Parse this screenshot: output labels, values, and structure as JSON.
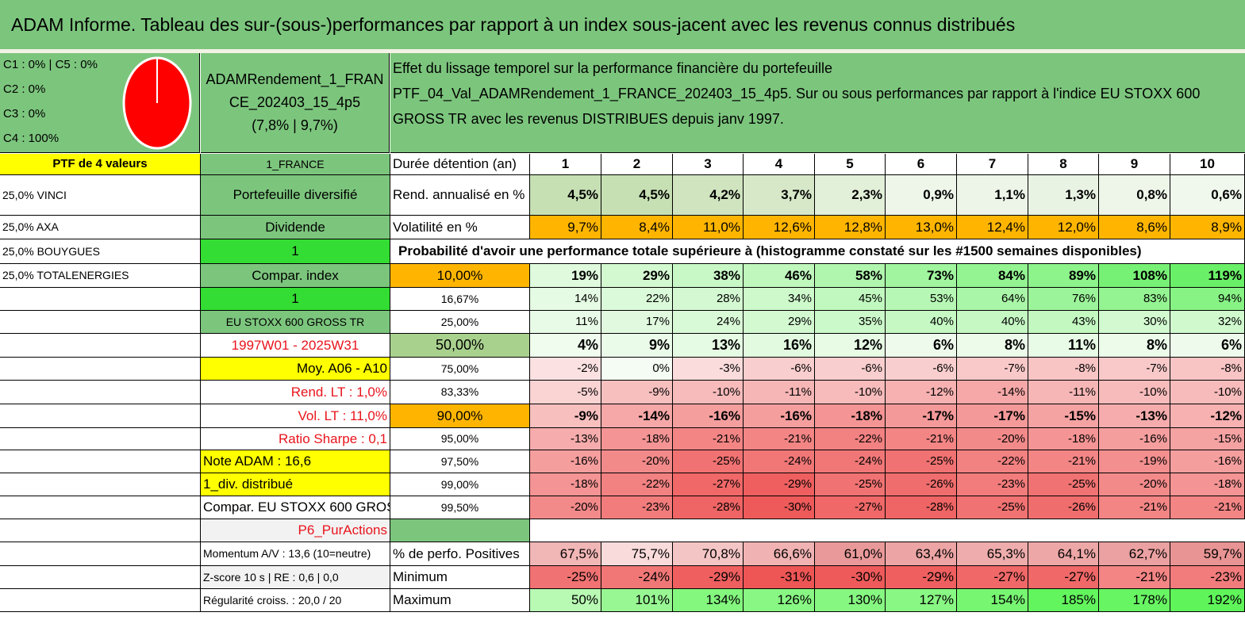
{
  "title": "ADAM Informe. Tableau des sur-(sous-)performances par rapport à un index sous-jacent avec les revenus connus distribués",
  "classes": [
    "C1 : 0% | C5 : 0%",
    "C2 : 0%",
    "C3 : 0%",
    "C4 : 100%"
  ],
  "pie": {
    "color": "#ff0000",
    "label_c4": 100
  },
  "portfolio_name": [
    "ADAMRendement_1_FRAN",
    "CE_202403_15_4p5",
    "(7,8% | 9,7%)"
  ],
  "effect_text": [
    "Effet du lissage temporel sur la performance financière du portefeuille",
    "PTF_04_Val_ADAMRendement_1_FRANCE_202403_15_4p5. Sur ou sous performances par rapport à l'indice EU STOXX 600",
    "GROSS TR avec les revenus DISTRIBUES depuis janv 1997."
  ],
  "left_col": [
    "PTF de 4 valeurs",
    "25,0% VINCI",
    "25,0% AXA",
    "25,0% BOUYGUES",
    "25,0% TOTALENERGIES"
  ],
  "mid_col": [
    "1_FRANCE",
    "Portefeuille diversifié",
    "Dividende",
    "1",
    "Compar. index",
    "1",
    "EU STOXX 600 GROSS TR",
    "1997W01 - 2025W31",
    "Moy. A06 - A10",
    "Rend. LT : 1,0%",
    "Vol. LT : 11,0%",
    "Ratio Sharpe : 0,1",
    "Note ADAM : 16,6",
    "1_div. distribué",
    "Compar. EU STOXX 600 GROSS TR",
    "P6_PurActions",
    "Momentum A/V : 13,6 (10=neutre)",
    "Z-score 10 s | RE : 0,6 | 0,0",
    "Régularité croiss. : 20,0 / 20"
  ],
  "holding_label": "Durée détention (an)",
  "years": [
    "1",
    "2",
    "3",
    "4",
    "5",
    "6",
    "7",
    "8",
    "9",
    "10"
  ],
  "rend_label": "Rend. annualisé en %",
  "rend": [
    "4,5%",
    "4,5%",
    "4,2%",
    "3,7%",
    "2,3%",
    "0,9%",
    "1,1%",
    "1,3%",
    "0,8%",
    "0,6%"
  ],
  "vol_label": "Volatilité en %",
  "vol": [
    "9,7%",
    "8,4%",
    "11,0%",
    "12,6%",
    "12,8%",
    "13,0%",
    "12,4%",
    "12,0%",
    "8,6%",
    "8,9%"
  ],
  "prob_title": "Probabilité d'avoir une performance totale supérieure à (histogramme constaté sur les #1500 semaines disponibles)",
  "prob_rows": [
    {
      "p": "10,00%",
      "v": [
        "19%",
        "29%",
        "38%",
        "46%",
        "58%",
        "73%",
        "84%",
        "89%",
        "108%",
        "119%"
      ]
    },
    {
      "p": "16,67%",
      "v": [
        "14%",
        "22%",
        "28%",
        "34%",
        "45%",
        "53%",
        "64%",
        "76%",
        "83%",
        "94%"
      ]
    },
    {
      "p": "25,00%",
      "v": [
        "11%",
        "17%",
        "24%",
        "29%",
        "35%",
        "40%",
        "40%",
        "43%",
        "30%",
        "32%"
      ]
    },
    {
      "p": "50,00%",
      "v": [
        "4%",
        "9%",
        "13%",
        "16%",
        "12%",
        "6%",
        "8%",
        "11%",
        "8%",
        "6%"
      ]
    },
    {
      "p": "75,00%",
      "v": [
        "-2%",
        "0%",
        "-3%",
        "-6%",
        "-6%",
        "-6%",
        "-7%",
        "-8%",
        "-7%",
        "-8%"
      ]
    },
    {
      "p": "83,33%",
      "v": [
        "-5%",
        "-9%",
        "-10%",
        "-11%",
        "-10%",
        "-12%",
        "-14%",
        "-11%",
        "-10%",
        "-10%"
      ]
    },
    {
      "p": "90,00%",
      "v": [
        "-9%",
        "-14%",
        "-16%",
        "-16%",
        "-18%",
        "-17%",
        "-17%",
        "-15%",
        "-13%",
        "-12%"
      ]
    },
    {
      "p": "95,00%",
      "v": [
        "-13%",
        "-18%",
        "-21%",
        "-21%",
        "-22%",
        "-21%",
        "-20%",
        "-18%",
        "-16%",
        "-15%"
      ]
    },
    {
      "p": "97,50%",
      "v": [
        "-16%",
        "-20%",
        "-25%",
        "-24%",
        "-24%",
        "-25%",
        "-22%",
        "-21%",
        "-19%",
        "-16%"
      ]
    },
    {
      "p": "99,00%",
      "v": [
        "-18%",
        "-22%",
        "-27%",
        "-29%",
        "-25%",
        "-26%",
        "-23%",
        "-25%",
        "-20%",
        "-18%"
      ]
    },
    {
      "p": "99,50%",
      "v": [
        "-20%",
        "-23%",
        "-28%",
        "-30%",
        "-27%",
        "-28%",
        "-25%",
        "-26%",
        "-21%",
        "-21%"
      ]
    }
  ],
  "pos_label": "% de perfo. Positives",
  "pos": [
    "67,5%",
    "75,7%",
    "70,8%",
    "66,6%",
    "61,0%",
    "63,4%",
    "65,3%",
    "64,1%",
    "62,7%",
    "59,7%"
  ],
  "min_label": "Minimum",
  "min": [
    "-25%",
    "-24%",
    "-29%",
    "-31%",
    "-30%",
    "-29%",
    "-27%",
    "-27%",
    "-21%",
    "-23%"
  ],
  "max_label": "Maximum",
  "max": [
    "50%",
    "101%",
    "134%",
    "126%",
    "130%",
    "127%",
    "154%",
    "185%",
    "178%",
    "192%"
  ]
}
